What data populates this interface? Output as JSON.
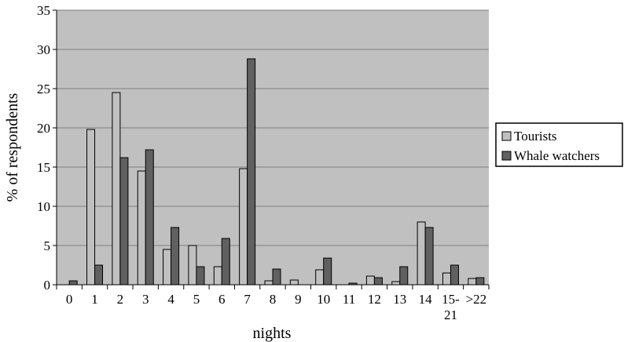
{
  "chart_data": {
    "type": "bar",
    "xlabel": "nights",
    "ylabel": "% of respondents",
    "ylim": [
      0,
      35
    ],
    "yticks": [
      0,
      5,
      10,
      15,
      20,
      25,
      30,
      35
    ],
    "grid": true,
    "legend_position": "right",
    "categories": [
      "0",
      "1",
      "2",
      "3",
      "4",
      "5",
      "6",
      "7",
      "8",
      "9",
      "10",
      "11",
      "12",
      "13",
      "14",
      "15-\n21",
      ">22"
    ],
    "series": [
      {
        "name": "Tourists",
        "color": "#c0c0c0",
        "values": [
          0,
          19.8,
          24.5,
          14.5,
          4.5,
          5.0,
          2.3,
          14.8,
          0.5,
          0.6,
          1.9,
          0,
          1.1,
          0.4,
          8.0,
          1.5,
          0.8
        ]
      },
      {
        "name": "Whale watchers",
        "color": "#606060",
        "values": [
          0.5,
          2.5,
          16.2,
          17.2,
          7.3,
          2.3,
          5.9,
          28.8,
          2.0,
          0,
          3.4,
          0.2,
          0.9,
          2.3,
          7.3,
          2.5,
          0.9
        ]
      }
    ],
    "colors": {
      "plot_background": "#c0c0c0",
      "gridline": "#808080"
    }
  }
}
